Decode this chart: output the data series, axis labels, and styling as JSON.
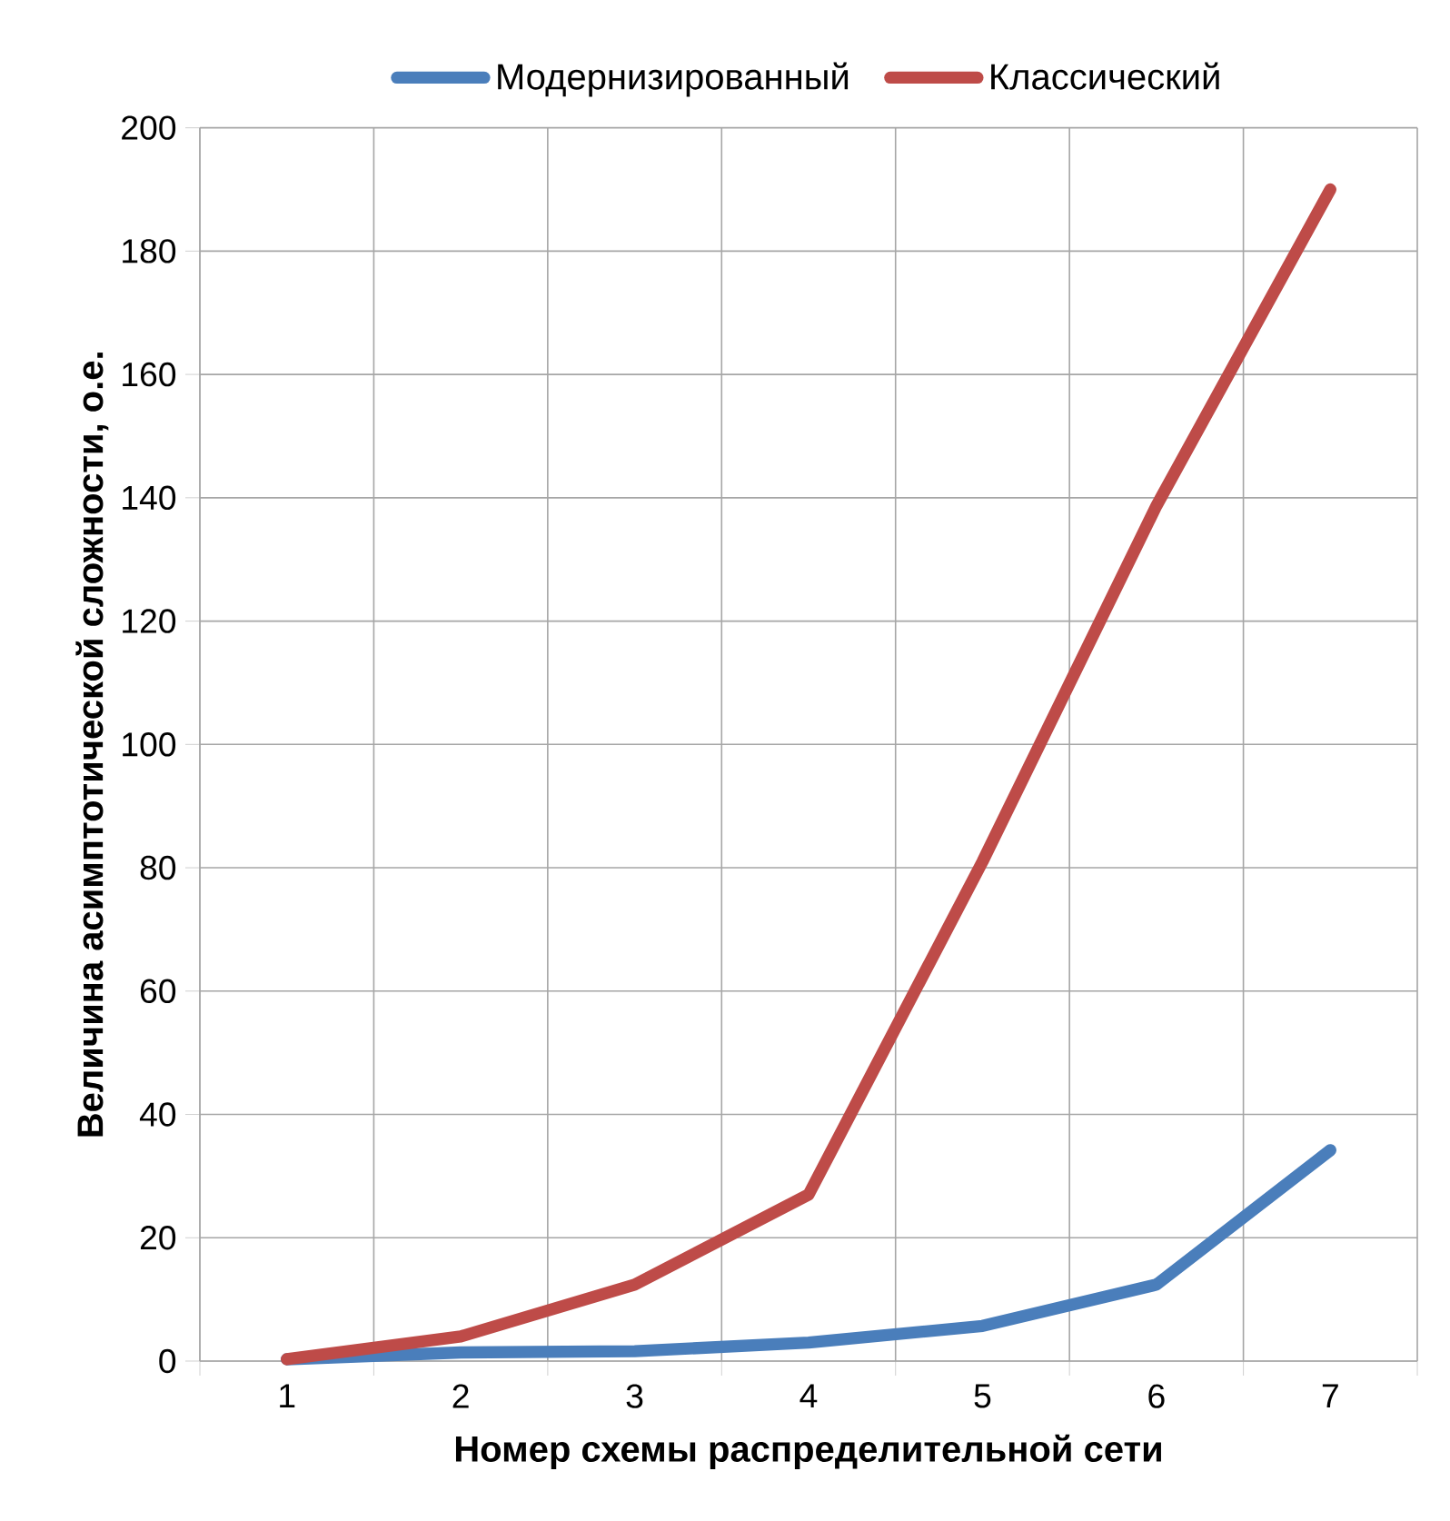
{
  "chart_data": {
    "type": "line",
    "xlabel": "Номер схемы распределительной сети",
    "ylabel": "Величина асимптотической сложности, о.е.",
    "categories": [
      "1",
      "2",
      "3",
      "4",
      "5",
      "6",
      "7"
    ],
    "series": [
      {
        "name": "Модернизированный",
        "color": "#4a7ebb",
        "values": [
          0.3,
          1.4,
          1.6,
          3,
          5.7,
          12.4,
          34.2
        ]
      },
      {
        "name": "Классический",
        "color": "#be4b48",
        "values": [
          0.3,
          4,
          12.4,
          27,
          81,
          138.7,
          190
        ]
      }
    ],
    "ylim": [
      0,
      200
    ],
    "yticks": [
      0,
      20,
      40,
      60,
      80,
      100,
      120,
      140,
      160,
      180,
      200
    ],
    "grid": true,
    "legend": "top",
    "marker": "none",
    "line_style": "solid"
  }
}
